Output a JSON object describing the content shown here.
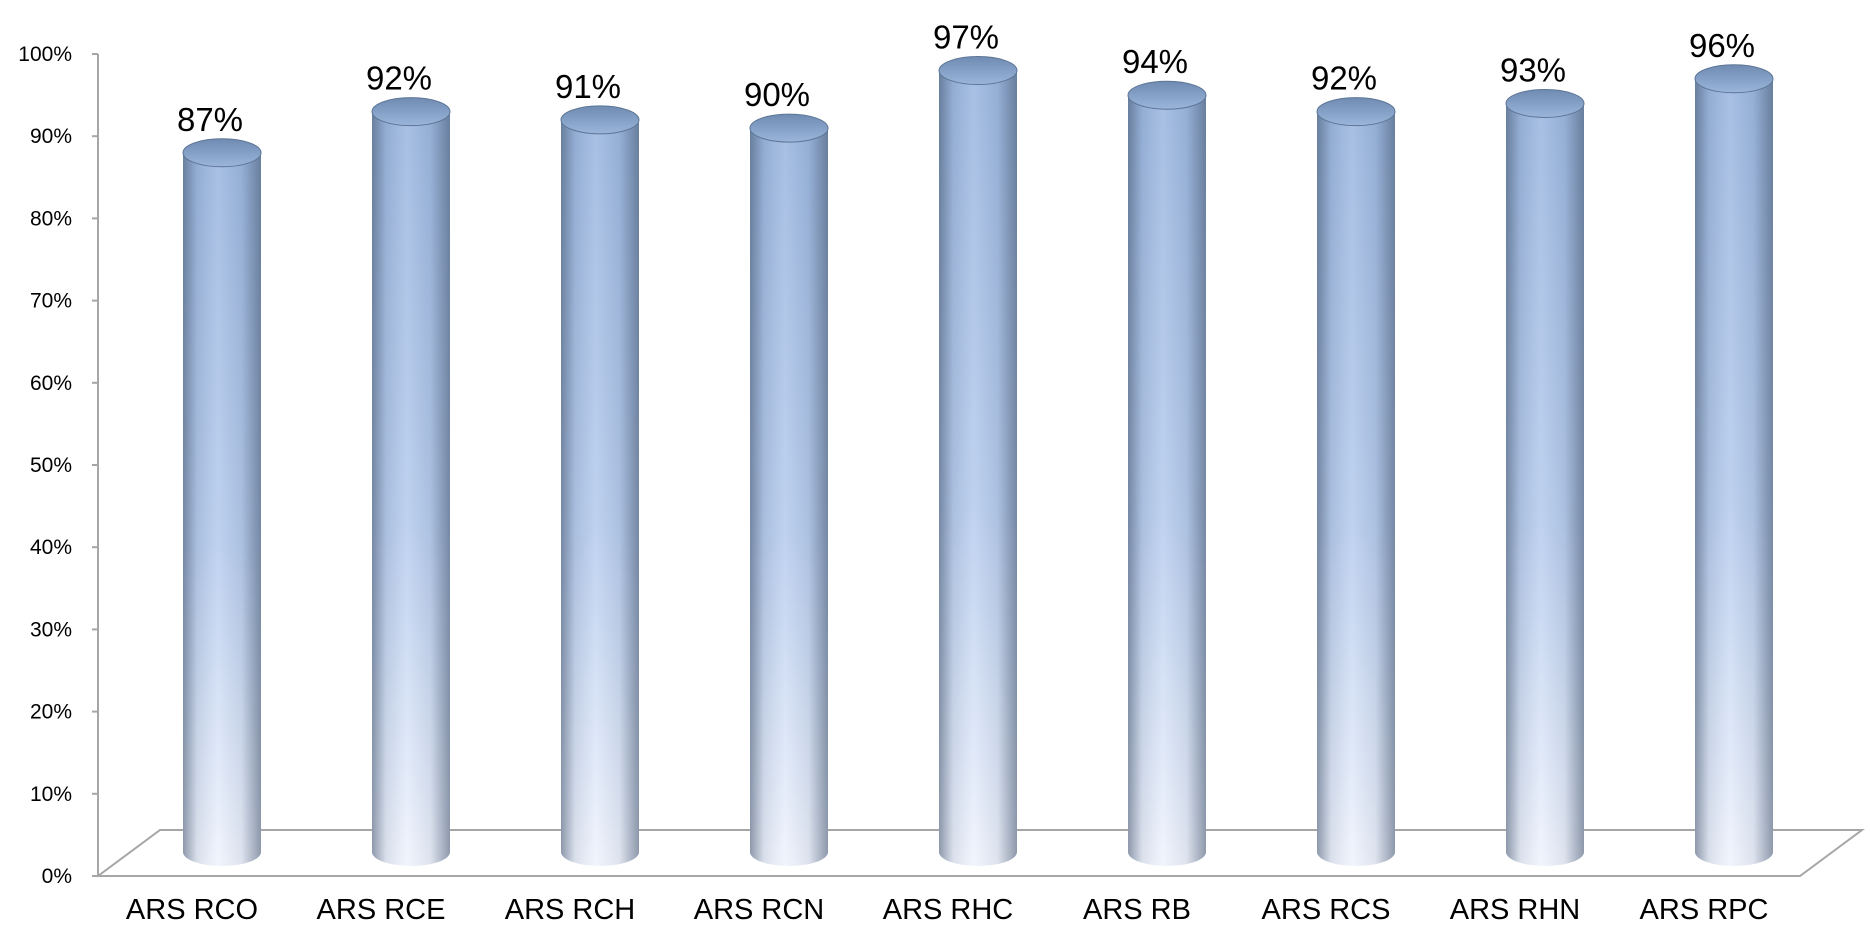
{
  "chart_data": {
    "type": "bar",
    "style": "3d-cylinder",
    "categories": [
      "ARS RCO",
      "ARS RCE",
      "ARS RCH",
      "ARS RCN",
      "ARS RHC",
      "ARS RB",
      "ARS RCS",
      "ARS RHN",
      "ARS RPC"
    ],
    "values": [
      87,
      92,
      91,
      90,
      97,
      94,
      92,
      93,
      96
    ],
    "data_labels": [
      "87%",
      "92%",
      "91%",
      "90%",
      "97%",
      "94%",
      "92%",
      "93%",
      "96%"
    ],
    "ylim": [
      0,
      100
    ],
    "yticks": [
      0,
      10,
      20,
      30,
      40,
      50,
      60,
      70,
      80,
      90,
      100
    ],
    "ytick_labels": [
      "0%",
      "10%",
      "20%",
      "30%",
      "40%",
      "50%",
      "60%",
      "70%",
      "80%",
      "90%",
      "100%"
    ],
    "xlabel": "",
    "ylabel": "",
    "grid": false,
    "legend": "none",
    "colors": {
      "bar_light": "#eef3fd",
      "bar_mid": "#a9c3e8",
      "bar_dark": "#5d7696",
      "bar_top": "#8aa7ce",
      "axis": "#a6a6a6"
    }
  }
}
